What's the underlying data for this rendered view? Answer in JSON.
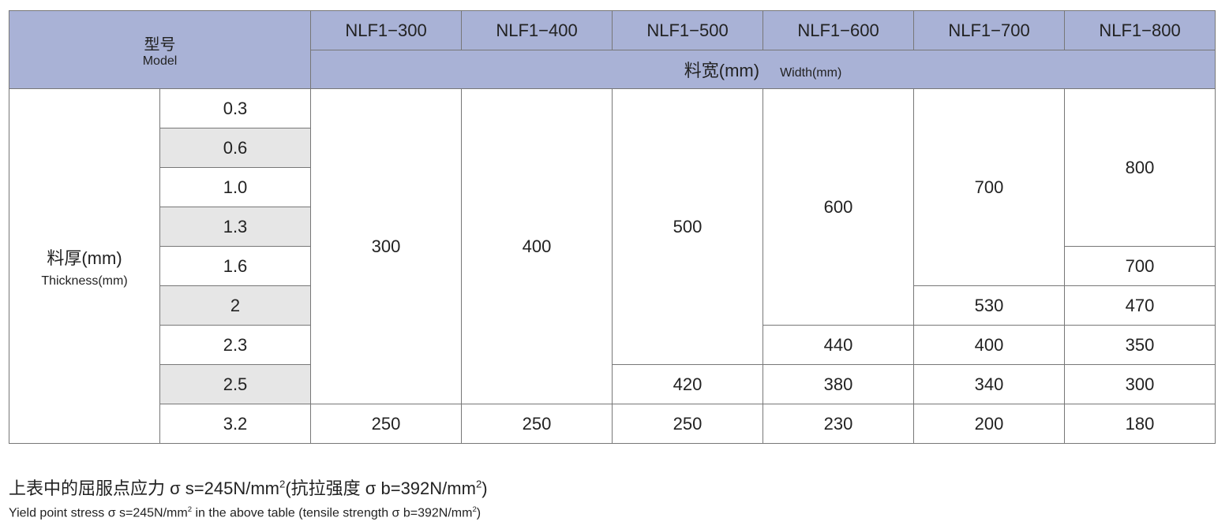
{
  "header": {
    "model_label": "型号",
    "model_label_en": "Model",
    "width_label": "料宽(mm)",
    "width_label_en": "Width(mm)"
  },
  "models": [
    "NLF1−300",
    "NLF1−400",
    "NLF1−500",
    "NLF1−600",
    "NLF1−700",
    "NLF1−800"
  ],
  "thickness_label": "料厚(mm)",
  "thickness_label_en": "Thickness(mm)",
  "thicknesses": [
    "0.3",
    "0.6",
    "1.0",
    "1.3",
    "1.6",
    "2",
    "2.3",
    "2.5",
    "3.2"
  ],
  "widths": [
    [
      {
        "value": "300",
        "span": 8
      },
      {
        "value": "250",
        "span": 1
      }
    ],
    [
      {
        "value": "400",
        "span": 8
      },
      {
        "value": "250",
        "span": 1
      }
    ],
    [
      {
        "value": "500",
        "span": 7
      },
      {
        "value": "420",
        "span": 1
      },
      {
        "value": "250",
        "span": 1
      }
    ],
    [
      {
        "value": "600",
        "span": 6
      },
      {
        "value": "440",
        "span": 1
      },
      {
        "value": "380",
        "span": 1
      },
      {
        "value": "230",
        "span": 1
      }
    ],
    [
      {
        "value": "700",
        "span": 5
      },
      {
        "value": "530",
        "span": 1
      },
      {
        "value": "400",
        "span": 1
      },
      {
        "value": "340",
        "span": 1
      },
      {
        "value": "200",
        "span": 1
      }
    ],
    [
      {
        "value": "800",
        "span": 4
      },
      {
        "value": "700",
        "span": 1
      },
      {
        "value": "470",
        "span": 1
      },
      {
        "value": "350",
        "span": 1
      },
      {
        "value": "300",
        "span": 1
      },
      {
        "value": "180",
        "span": 1
      }
    ]
  ],
  "footnote": {
    "zh": [
      "上表中的屈服点应力 σ s=245N/mm",
      "2",
      "(抗拉强度 σ b=392N/mm",
      "2",
      ")"
    ],
    "en": [
      "Yield point stress  σ s=245N/mm",
      "2",
      " in the above table (tensile strength  σ b=392N/mm",
      "2",
      ")"
    ]
  }
}
